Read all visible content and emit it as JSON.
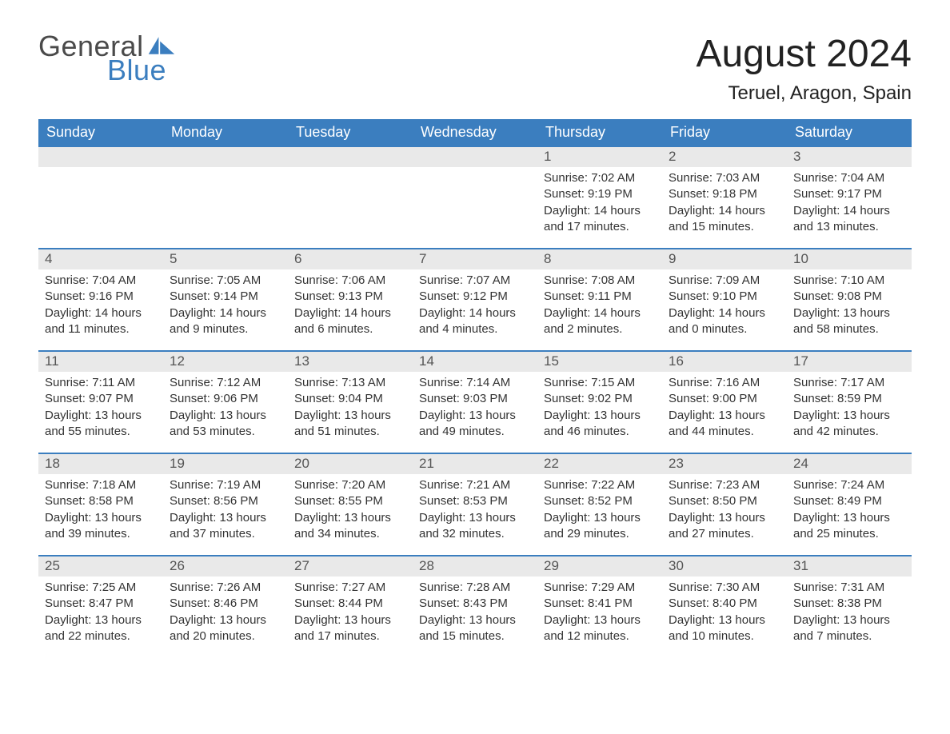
{
  "brand": {
    "word1": "General",
    "word2": "Blue"
  },
  "title": "August 2024",
  "location": "Teruel, Aragon, Spain",
  "colors": {
    "brand_blue": "#3b7ebf",
    "header_bg": "#3b7ebf",
    "header_text": "#ffffff",
    "day_header_bg": "#e9e9e9",
    "text": "#333333",
    "border_top": "#3b7ebf",
    "page_bg": "#ffffff"
  },
  "daysOfWeek": [
    "Sunday",
    "Monday",
    "Tuesday",
    "Wednesday",
    "Thursday",
    "Friday",
    "Saturday"
  ],
  "calendar": {
    "month": 8,
    "year": 2024,
    "startDayIndex": 4,
    "cells": [
      null,
      null,
      null,
      null,
      {
        "d": "1",
        "sunrise": "7:02 AM",
        "sunset": "9:19 PM",
        "dlh": 14,
        "dlm": 17
      },
      {
        "d": "2",
        "sunrise": "7:03 AM",
        "sunset": "9:18 PM",
        "dlh": 14,
        "dlm": 15
      },
      {
        "d": "3",
        "sunrise": "7:04 AM",
        "sunset": "9:17 PM",
        "dlh": 14,
        "dlm": 13
      },
      {
        "d": "4",
        "sunrise": "7:04 AM",
        "sunset": "9:16 PM",
        "dlh": 14,
        "dlm": 11
      },
      {
        "d": "5",
        "sunrise": "7:05 AM",
        "sunset": "9:14 PM",
        "dlh": 14,
        "dlm": 9
      },
      {
        "d": "6",
        "sunrise": "7:06 AM",
        "sunset": "9:13 PM",
        "dlh": 14,
        "dlm": 6
      },
      {
        "d": "7",
        "sunrise": "7:07 AM",
        "sunset": "9:12 PM",
        "dlh": 14,
        "dlm": 4
      },
      {
        "d": "8",
        "sunrise": "7:08 AM",
        "sunset": "9:11 PM",
        "dlh": 14,
        "dlm": 2
      },
      {
        "d": "9",
        "sunrise": "7:09 AM",
        "sunset": "9:10 PM",
        "dlh": 14,
        "dlm": 0
      },
      {
        "d": "10",
        "sunrise": "7:10 AM",
        "sunset": "9:08 PM",
        "dlh": 13,
        "dlm": 58
      },
      {
        "d": "11",
        "sunrise": "7:11 AM",
        "sunset": "9:07 PM",
        "dlh": 13,
        "dlm": 55
      },
      {
        "d": "12",
        "sunrise": "7:12 AM",
        "sunset": "9:06 PM",
        "dlh": 13,
        "dlm": 53
      },
      {
        "d": "13",
        "sunrise": "7:13 AM",
        "sunset": "9:04 PM",
        "dlh": 13,
        "dlm": 51
      },
      {
        "d": "14",
        "sunrise": "7:14 AM",
        "sunset": "9:03 PM",
        "dlh": 13,
        "dlm": 49
      },
      {
        "d": "15",
        "sunrise": "7:15 AM",
        "sunset": "9:02 PM",
        "dlh": 13,
        "dlm": 46
      },
      {
        "d": "16",
        "sunrise": "7:16 AM",
        "sunset": "9:00 PM",
        "dlh": 13,
        "dlm": 44
      },
      {
        "d": "17",
        "sunrise": "7:17 AM",
        "sunset": "8:59 PM",
        "dlh": 13,
        "dlm": 42
      },
      {
        "d": "18",
        "sunrise": "7:18 AM",
        "sunset": "8:58 PM",
        "dlh": 13,
        "dlm": 39
      },
      {
        "d": "19",
        "sunrise": "7:19 AM",
        "sunset": "8:56 PM",
        "dlh": 13,
        "dlm": 37
      },
      {
        "d": "20",
        "sunrise": "7:20 AM",
        "sunset": "8:55 PM",
        "dlh": 13,
        "dlm": 34
      },
      {
        "d": "21",
        "sunrise": "7:21 AM",
        "sunset": "8:53 PM",
        "dlh": 13,
        "dlm": 32
      },
      {
        "d": "22",
        "sunrise": "7:22 AM",
        "sunset": "8:52 PM",
        "dlh": 13,
        "dlm": 29
      },
      {
        "d": "23",
        "sunrise": "7:23 AM",
        "sunset": "8:50 PM",
        "dlh": 13,
        "dlm": 27
      },
      {
        "d": "24",
        "sunrise": "7:24 AM",
        "sunset": "8:49 PM",
        "dlh": 13,
        "dlm": 25
      },
      {
        "d": "25",
        "sunrise": "7:25 AM",
        "sunset": "8:47 PM",
        "dlh": 13,
        "dlm": 22
      },
      {
        "d": "26",
        "sunrise": "7:26 AM",
        "sunset": "8:46 PM",
        "dlh": 13,
        "dlm": 20
      },
      {
        "d": "27",
        "sunrise": "7:27 AM",
        "sunset": "8:44 PM",
        "dlh": 13,
        "dlm": 17
      },
      {
        "d": "28",
        "sunrise": "7:28 AM",
        "sunset": "8:43 PM",
        "dlh": 13,
        "dlm": 15
      },
      {
        "d": "29",
        "sunrise": "7:29 AM",
        "sunset": "8:41 PM",
        "dlh": 13,
        "dlm": 12
      },
      {
        "d": "30",
        "sunrise": "7:30 AM",
        "sunset": "8:40 PM",
        "dlh": 13,
        "dlm": 10
      },
      {
        "d": "31",
        "sunrise": "7:31 AM",
        "sunset": "8:38 PM",
        "dlh": 13,
        "dlm": 7
      }
    ]
  },
  "labels": {
    "sunrise": "Sunrise:",
    "sunset": "Sunset:",
    "daylight": "Daylight:",
    "hours": "hours",
    "and": "and",
    "minutes": "minutes."
  }
}
